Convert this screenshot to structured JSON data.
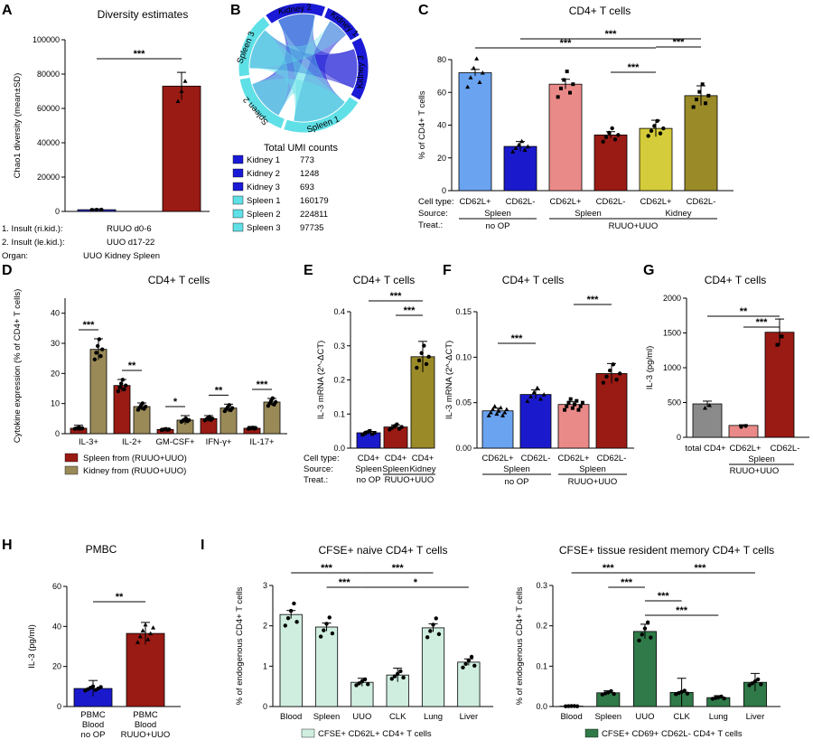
{
  "panels": [
    {
      "id": "A",
      "label": "A",
      "title": "Diversity estimates"
    },
    {
      "id": "B",
      "label": "B",
      "title": ""
    },
    {
      "id": "C",
      "label": "C",
      "title": "CD4+ T cells"
    },
    {
      "id": "D",
      "label": "D",
      "title": "CD4+ T cells"
    },
    {
      "id": "E",
      "label": "E",
      "title": "CD4+ T cells"
    },
    {
      "id": "F",
      "label": "F",
      "title": "CD4+ T cells"
    },
    {
      "id": "G",
      "label": "G",
      "title": "CD4+ T cells"
    },
    {
      "id": "H",
      "label": "H",
      "title": "PMBC"
    },
    {
      "id": "I",
      "label": "I",
      "title": ""
    }
  ],
  "chart_data": [
    {
      "id": "A",
      "type": "bar",
      "title": "Diversity estimates",
      "ylabel": "Chao1 diversity (mean±SD)",
      "ylim": [
        0,
        100000
      ],
      "yticks": [
        "0",
        "20000",
        "40000",
        "60000",
        "80000",
        "100000"
      ],
      "categories": [
        "UUO Kidney",
        "Spleen"
      ],
      "values": [
        1000,
        73000
      ],
      "errors": [
        500,
        8000
      ],
      "colors": [
        "#2e2ed6",
        "#9a1a14"
      ],
      "significance": [
        "***"
      ],
      "meta": [
        {
          "label": "1. Insult (ri.kid.):",
          "value": "RUUO d0-6"
        },
        {
          "label": "2. Insult (le.kid.):",
          "value": "UUO d17-22"
        },
        {
          "label": "Organ:",
          "value": "UUO Kidney     Spleen"
        }
      ]
    },
    {
      "id": "B",
      "type": "chord",
      "segments": [
        "Kidney 1",
        "Kidney 2",
        "Kidney 3",
        "Spleen 1",
        "Spleen 2",
        "Spleen 3"
      ],
      "legend_title": "Total UMI counts",
      "legend": [
        {
          "name": "Kidney 1",
          "value": "773",
          "color": "#1a1ad6"
        },
        {
          "name": "Kidney 2",
          "value": "1248",
          "color": "#1a1ad6"
        },
        {
          "name": "Kidney 3",
          "value": "693",
          "color": "#1a1ad6"
        },
        {
          "name": "Spleen 1",
          "value": "160179",
          "color": "#5fe0e6"
        },
        {
          "name": "Spleen 2",
          "value": "224811",
          "color": "#5fe0e6"
        },
        {
          "name": "Spleen 3",
          "value": "97735",
          "color": "#5fe0e6"
        }
      ]
    },
    {
      "id": "C",
      "type": "bar",
      "title": "CD4+ T cells",
      "ylabel": "% of CD4+ T cells",
      "ylim": [
        0,
        80
      ],
      "yticks": [
        "0",
        "20",
        "40",
        "60",
        "80"
      ],
      "categories": [
        "CD62L+",
        "CD62L-",
        "CD62L+",
        "CD62L-",
        "CD62L+",
        "CD62L-"
      ],
      "values": [
        72,
        27,
        65,
        34,
        38,
        58
      ],
      "errors": [
        2,
        3,
        3,
        2,
        5,
        6
      ],
      "colors": [
        "#6aa3f0",
        "#1a1acc",
        "#ea8a88",
        "#9a1a14",
        "#d4cc3a",
        "#9a8a28"
      ],
      "significance": [
        "***",
        "***",
        "***",
        "***"
      ],
      "meta_labels": [
        "Cell type:",
        "Source:",
        "Treat.:"
      ],
      "sources": [
        "Spleen",
        "Spleen",
        "Kidney"
      ],
      "treatments": [
        "no OP",
        "RUUO+UUO"
      ]
    },
    {
      "id": "D",
      "type": "bar",
      "title": "CD4+ T cells",
      "ylabel": "Cytokine expression (% of CD4+ T cells)",
      "ylim": [
        0,
        45
      ],
      "yticks": [
        "0",
        "10",
        "20",
        "30",
        "40"
      ],
      "categories": [
        "IL-3+",
        "IL-2+",
        "GM-CSF+",
        "IFN-γ+",
        "IL-17+"
      ],
      "series": [
        {
          "name": "Spleen from (RUUO+UUO)",
          "color": "#9a1a14",
          "values": [
            1.8,
            16,
            1.4,
            5,
            1.8
          ],
          "errors": [
            1,
            2,
            0.4,
            1,
            0.6
          ]
        },
        {
          "name": "Kidney from (RUUO+UUO)",
          "color": "#9a8a58",
          "values": [
            28,
            9,
            4.5,
            8.5,
            10.5
          ],
          "errors": [
            3.5,
            1.2,
            1.5,
            1.3,
            1.2
          ]
        }
      ],
      "significance": [
        "***",
        "**",
        "*",
        "**",
        "***"
      ]
    },
    {
      "id": "E",
      "type": "bar",
      "title": "CD4+ T cells",
      "ylabel": "IL-3 mRNA (2^-ΔCT)",
      "ylim": [
        0,
        0.4
      ],
      "yticks": [
        "0.0",
        "0.1",
        "0.2",
        "0.3",
        "0.4"
      ],
      "categories": [
        "CD4+",
        "CD4+",
        "CD4+"
      ],
      "values": [
        0.045,
        0.062,
        0.268
      ],
      "errors": [
        0.004,
        0.006,
        0.045
      ],
      "colors": [
        "#1a1acc",
        "#9a1a14",
        "#9a8a28"
      ],
      "significance": [
        "***",
        "***"
      ],
      "meta_labels": [
        "Cell type:",
        "Source:",
        "Treat.:"
      ],
      "sources": [
        "Spleen",
        "Spleen",
        "Kidney"
      ],
      "treatments": [
        "no OP",
        "RUUO+UUO"
      ]
    },
    {
      "id": "F",
      "type": "bar",
      "title": "CD4+ T cells",
      "ylabel": "IL-3 mRNA (2^-ΔCT)",
      "ylim": [
        0,
        0.15
      ],
      "yticks": [
        "0.00",
        "0.05",
        "0.10",
        "0.15"
      ],
      "categories": [
        "CD62L+",
        "CD62L-",
        "CD62L+",
        "CD62L-"
      ],
      "values": [
        0.041,
        0.059,
        0.048,
        0.082
      ],
      "errors": [
        0.003,
        0.005,
        0.003,
        0.011
      ],
      "colors": [
        "#6aa3f0",
        "#1a1acc",
        "#ea8a88",
        "#9a1a14"
      ],
      "significance": [
        "***",
        "***"
      ],
      "sources": [
        "Spleen",
        "Spleen"
      ],
      "treatments": [
        "no OP",
        "RUUO+UUO"
      ]
    },
    {
      "id": "G",
      "type": "bar",
      "title": "CD4+ T cells",
      "ylabel": "IL-3 (pg/ml)",
      "ylim": [
        0,
        2000
      ],
      "yticks": [
        "0",
        "500",
        "1000",
        "1500",
        "2000"
      ],
      "categories": [
        "total CD4+",
        "CD62L+",
        "CD62L-"
      ],
      "values": [
        480,
        170,
        1510
      ],
      "errors": [
        40,
        10,
        190
      ],
      "colors": [
        "#8a8a8a",
        "#ea8a88",
        "#9a1a14"
      ],
      "significance": [
        "**",
        "***"
      ],
      "sources": [
        "Spleen"
      ],
      "treatments": [
        "RUUO+UUO"
      ]
    },
    {
      "id": "H",
      "type": "bar",
      "title": "PMBC",
      "ylabel": "IL-3 (pg/ml)",
      "ylim": [
        0,
        60
      ],
      "yticks": [
        "0",
        "20",
        "40",
        "60"
      ],
      "categories": [
        "PBMC",
        "PBMC"
      ],
      "sublabels": [
        "Blood",
        "Blood"
      ],
      "treatments": [
        "no OP",
        "RUUO+UUO"
      ],
      "values": [
        9,
        36.5
      ],
      "errors": [
        4,
        5.5
      ],
      "colors": [
        "#1a1acc",
        "#9a1a14"
      ],
      "significance": [
        "**"
      ]
    },
    {
      "id": "I1",
      "type": "bar",
      "title": "CFSE+ naive CD4+ T cells",
      "ylabel": "% of endogenous CD4+ T cells",
      "ylim": [
        0,
        3
      ],
      "yticks": [
        "0",
        "1",
        "2",
        "3"
      ],
      "categories": [
        "Blood",
        "Spleen",
        "UUO",
        "CLK",
        "Lung",
        "Liver"
      ],
      "values": [
        2.28,
        1.97,
        0.6,
        0.78,
        1.95,
        1.1
      ],
      "errors": [
        0.1,
        0.1,
        0.1,
        0.17,
        0.1,
        0.08
      ],
      "color": "#cfeee0",
      "legend": "CFSE+ CD62L+ CD4+ T cells",
      "significance": [
        "***",
        "***",
        "***",
        "*"
      ]
    },
    {
      "id": "I2",
      "type": "bar",
      "title": "CFSE+ tissue resident memory CD4+ T cells",
      "ylabel": "% of endogenous CD4+ T cells",
      "ylim": [
        0,
        0.3
      ],
      "yticks": [
        "0.0",
        "0.1",
        "0.2",
        "0.3"
      ],
      "categories": [
        "Blood",
        "Spleen",
        "UUO",
        "CLK",
        "Lung",
        "Liver"
      ],
      "values": [
        0.001,
        0.034,
        0.186,
        0.035,
        0.022,
        0.06
      ],
      "errors": [
        0.001,
        0.005,
        0.018,
        0.035,
        0.005,
        0.022
      ],
      "color": "#2f7a48",
      "legend": "CFSE+ CD69+ CD62L- CD4+ T cells",
      "significance": [
        "***",
        "***",
        "***",
        "***",
        "***"
      ]
    }
  ]
}
